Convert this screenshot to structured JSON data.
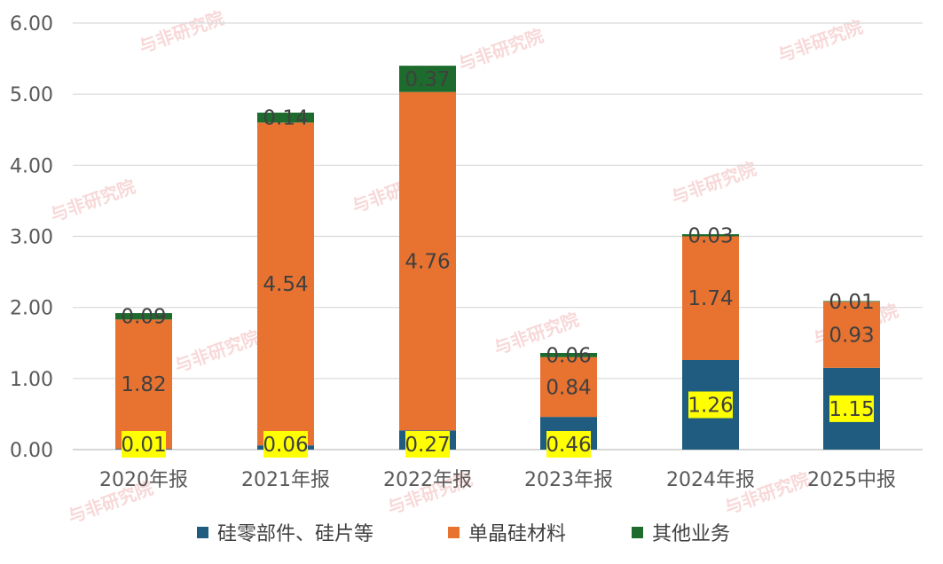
{
  "chart_data": {
    "type": "bar",
    "stacked": true,
    "title": "",
    "xlabel": "",
    "ylabel": "",
    "ylim": [
      0,
      6
    ],
    "yticks": [
      "0.00",
      "1.00",
      "2.00",
      "3.00",
      "4.00",
      "5.00",
      "6.00"
    ],
    "grid": true,
    "legend_position": "bottom",
    "categories": [
      "2020年报",
      "2021年报",
      "2022年报",
      "2023年报",
      "2024年报",
      "2025中报"
    ],
    "series": [
      {
        "name": "硅零部件、硅片等",
        "color": "#1f5c80",
        "values": [
          0.01,
          0.06,
          0.27,
          0.46,
          1.26,
          1.15
        ],
        "labels": [
          "0.01",
          "0.06",
          "0.27",
          "0.46",
          "1.26",
          "1.15"
        ],
        "label_highlight": "#ffff00"
      },
      {
        "name": "单晶硅材料",
        "color": "#e87331",
        "values": [
          1.82,
          4.54,
          4.76,
          0.84,
          1.74,
          0.93
        ],
        "labels": [
          "1.82",
          "4.54",
          "4.76",
          "0.84",
          "1.74",
          "0.93"
        ]
      },
      {
        "name": "其他业务",
        "color": "#1d6b2d",
        "values": [
          0.09,
          0.14,
          0.37,
          0.06,
          0.03,
          0.01
        ],
        "labels": [
          "0.09",
          "0.14",
          "0.37",
          "0.06",
          "0.03",
          "0.01"
        ]
      }
    ]
  },
  "watermark": {
    "text": "与非研究院",
    "color": "#f2b8b8"
  }
}
